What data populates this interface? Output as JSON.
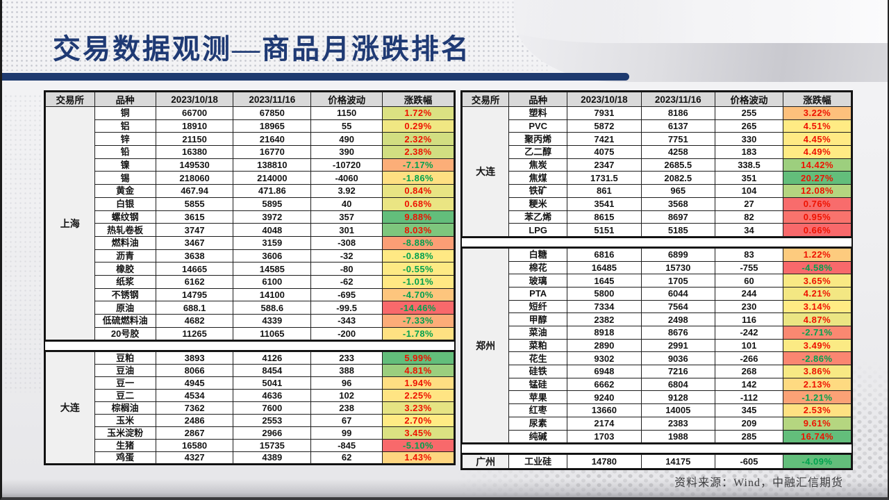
{
  "slide": {
    "title": "交易数据观测—商品月涨跌排名",
    "source_note": "资料来源：Wind，中融汇信期货"
  },
  "colors": {
    "accent_navy": "#1E3A6F",
    "scale_red": "#F8696B",
    "scale_yellow": "#FFEB84",
    "scale_green": "#63BE7B",
    "up_text": "#EE1100",
    "down_text": "#00A14E",
    "header_bg": "#D9D9D9",
    "exchange_cell_bg": "#F0F0F0"
  },
  "table": {
    "headers": [
      "交易所",
      "品种",
      "2023/10/18",
      "2023/11/16",
      "价格波动",
      "涨跌幅"
    ]
  },
  "left_sections": [
    {
      "exchange": "上海",
      "rows": [
        {
          "name": "铜",
          "d1": "66700",
          "d2": "67850",
          "chg": "1150",
          "pct": 1.72
        },
        {
          "name": "铝",
          "d1": "18910",
          "d2": "18965",
          "chg": "55",
          "pct": 0.29
        },
        {
          "name": "锌",
          "d1": "21150",
          "d2": "21640",
          "chg": "490",
          "pct": 2.32
        },
        {
          "name": "铅",
          "d1": "16380",
          "d2": "16770",
          "chg": "390",
          "pct": 2.38
        },
        {
          "name": "镍",
          "d1": "149530",
          "d2": "138810",
          "chg": "-10720",
          "pct": -7.17
        },
        {
          "name": "锡",
          "d1": "218060",
          "d2": "214000",
          "chg": "-4060",
          "pct": -1.86
        },
        {
          "name": "黄金",
          "d1": "467.94",
          "d2": "471.86",
          "chg": "3.92",
          "pct": 0.84
        },
        {
          "name": "白银",
          "d1": "5855",
          "d2": "5895",
          "chg": "40",
          "pct": 0.68
        },
        {
          "name": "螺纹钢",
          "d1": "3615",
          "d2": "3972",
          "chg": "357",
          "pct": 9.88
        },
        {
          "name": "热轧卷板",
          "d1": "3747",
          "d2": "4048",
          "chg": "301",
          "pct": 8.03
        },
        {
          "name": "燃料油",
          "d1": "3467",
          "d2": "3159",
          "chg": "-308",
          "pct": -8.88
        },
        {
          "name": "沥青",
          "d1": "3638",
          "d2": "3606",
          "chg": "-32",
          "pct": -0.88
        },
        {
          "name": "橡胶",
          "d1": "14665",
          "d2": "14585",
          "chg": "-80",
          "pct": -0.55
        },
        {
          "name": "纸浆",
          "d1": "6162",
          "d2": "6100",
          "chg": "-62",
          "pct": -1.01
        },
        {
          "name": "不锈钢",
          "d1": "14795",
          "d2": "14100",
          "chg": "-695",
          "pct": -4.7
        },
        {
          "name": "原油",
          "d1": "688.1",
          "d2": "588.6",
          "chg": "-99.5",
          "pct": -14.46
        },
        {
          "name": "低硫燃料油",
          "d1": "4682",
          "d2": "4339",
          "chg": "-343",
          "pct": -7.33
        },
        {
          "name": "20号胶",
          "d1": "11265",
          "d2": "11065",
          "chg": "-200",
          "pct": -1.78
        }
      ]
    },
    {
      "exchange": "大连",
      "rows": [
        {
          "name": "豆粕",
          "d1": "3893",
          "d2": "4126",
          "chg": "233",
          "pct": 5.99
        },
        {
          "name": "豆油",
          "d1": "8066",
          "d2": "8454",
          "chg": "388",
          "pct": 4.81
        },
        {
          "name": "豆一",
          "d1": "4945",
          "d2": "5041",
          "chg": "96",
          "pct": 1.94
        },
        {
          "name": "豆二",
          "d1": "4534",
          "d2": "4636",
          "chg": "102",
          "pct": 2.25
        },
        {
          "name": "棕榈油",
          "d1": "7362",
          "d2": "7600",
          "chg": "238",
          "pct": 3.23
        },
        {
          "name": "玉米",
          "d1": "2486",
          "d2": "2553",
          "chg": "67",
          "pct": 2.7
        },
        {
          "name": "玉米淀粉",
          "d1": "2867",
          "d2": "2966",
          "chg": "99",
          "pct": 3.45
        },
        {
          "name": "生猪",
          "d1": "16580",
          "d2": "15735",
          "chg": "-845",
          "pct": -5.1
        },
        {
          "name": "鸡蛋",
          "d1": "4327",
          "d2": "4389",
          "chg": "62",
          "pct": 1.43
        }
      ]
    }
  ],
  "right_sections": [
    {
      "exchange": "大连",
      "rows": [
        {
          "name": "塑料",
          "d1": "7931",
          "d2": "8186",
          "chg": "255",
          "pct": 3.22
        },
        {
          "name": "PVC",
          "d1": "5872",
          "d2": "6137",
          "chg": "265",
          "pct": 4.51
        },
        {
          "name": "聚丙烯",
          "d1": "7421",
          "d2": "7751",
          "chg": "330",
          "pct": 4.45
        },
        {
          "name": "乙二醇",
          "d1": "4075",
          "d2": "4258",
          "chg": "183",
          "pct": 4.49
        },
        {
          "name": "焦炭",
          "d1": "2347",
          "d2": "2685.5",
          "chg": "338.5",
          "pct": 14.42
        },
        {
          "name": "焦煤",
          "d1": "1731.5",
          "d2": "2082.5",
          "chg": "351",
          "pct": 20.27
        },
        {
          "name": "铁矿",
          "d1": "861",
          "d2": "965",
          "chg": "104",
          "pct": 12.08
        },
        {
          "name": "粳米",
          "d1": "3541",
          "d2": "3568",
          "chg": "27",
          "pct": 0.76
        },
        {
          "name": "苯乙烯",
          "d1": "8615",
          "d2": "8697",
          "chg": "82",
          "pct": 0.95
        },
        {
          "name": "LPG",
          "d1": "5151",
          "d2": "5185",
          "chg": "34",
          "pct": 0.66
        }
      ]
    },
    {
      "exchange": "郑州",
      "rows": [
        {
          "name": "白糖",
          "d1": "6816",
          "d2": "6899",
          "chg": "83",
          "pct": 1.22
        },
        {
          "name": "棉花",
          "d1": "16485",
          "d2": "15730",
          "chg": "-755",
          "pct": -4.58
        },
        {
          "name": "玻璃",
          "d1": "1645",
          "d2": "1705",
          "chg": "60",
          "pct": 3.65
        },
        {
          "name": "PTA",
          "d1": "5800",
          "d2": "6044",
          "chg": "244",
          "pct": 4.21
        },
        {
          "name": "短纤",
          "d1": "7334",
          "d2": "7564",
          "chg": "230",
          "pct": 3.14
        },
        {
          "name": "甲醇",
          "d1": "2382",
          "d2": "2498",
          "chg": "116",
          "pct": 4.87
        },
        {
          "name": "菜油",
          "d1": "8918",
          "d2": "8676",
          "chg": "-242",
          "pct": -2.71
        },
        {
          "name": "菜粕",
          "d1": "2890",
          "d2": "2991",
          "chg": "101",
          "pct": 3.49
        },
        {
          "name": "花生",
          "d1": "9302",
          "d2": "9036",
          "chg": "-266",
          "pct": -2.86
        },
        {
          "name": "硅铁",
          "d1": "6948",
          "d2": "7216",
          "chg": "268",
          "pct": 3.86
        },
        {
          "name": "锰硅",
          "d1": "6662",
          "d2": "6804",
          "chg": "142",
          "pct": 2.13
        },
        {
          "name": "苹果",
          "d1": "9240",
          "d2": "9128",
          "chg": "-112",
          "pct": -1.21
        },
        {
          "name": "红枣",
          "d1": "13660",
          "d2": "14005",
          "chg": "345",
          "pct": 2.53
        },
        {
          "name": "尿素",
          "d1": "2174",
          "d2": "2383",
          "chg": "209",
          "pct": 9.61
        },
        {
          "name": "纯碱",
          "d1": "1703",
          "d2": "1988",
          "chg": "285",
          "pct": 16.74
        }
      ]
    },
    {
      "exchange": "广州",
      "rows": [
        {
          "name": "工业硅",
          "d1": "14780",
          "d2": "14175",
          "chg": "-605",
          "pct": -4.09
        }
      ]
    }
  ]
}
